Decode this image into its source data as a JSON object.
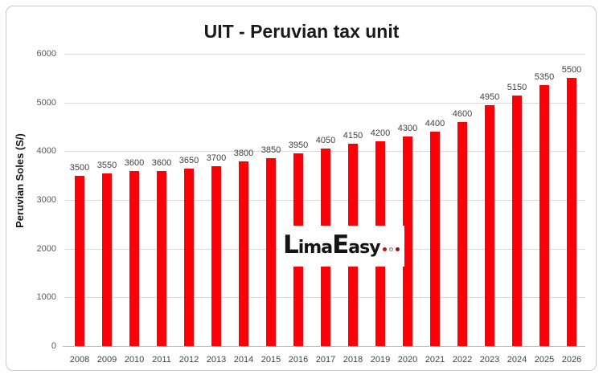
{
  "chart_data": {
    "type": "bar",
    "title": "UIT - Peruvian tax unit",
    "xlabel": "",
    "ylabel": "Peruvian Soles (S/)",
    "categories": [
      "2008",
      "2009",
      "2010",
      "2011",
      "2012",
      "2013",
      "2014",
      "2015",
      "2016",
      "2017",
      "2018",
      "2019",
      "2020",
      "2021",
      "2022",
      "2023",
      "2024",
      "2025",
      "2026"
    ],
    "values": [
      3500,
      3550,
      3600,
      3600,
      3650,
      3700,
      3800,
      3850,
      3950,
      4050,
      4150,
      4200,
      4300,
      4400,
      4600,
      4950,
      5150,
      5350,
      5500
    ],
    "ylim": [
      0,
      6000
    ],
    "yticks": [
      0,
      1000,
      2000,
      3000,
      4000,
      5000,
      6000
    ],
    "grid": true,
    "legend": "none",
    "data_labels": true,
    "bar_color": "#fb0007"
  },
  "watermark": {
    "part1": "Lima",
    "part2": "Easy",
    "dot_colors": [
      "#c01414",
      "#e6e6e6",
      "#8e1616"
    ]
  },
  "colors": {
    "bar": "#fb0007",
    "title_text": "#1a1a1a",
    "y_tick_text": "#595959",
    "x_tick_text": "#444444",
    "data_label_text": "#3f3f3f",
    "gridline": "#d9d9d9",
    "axis_baseline": "#bfbfbf",
    "frame_border": "#c9c9c9",
    "background": "#ffffff"
  }
}
